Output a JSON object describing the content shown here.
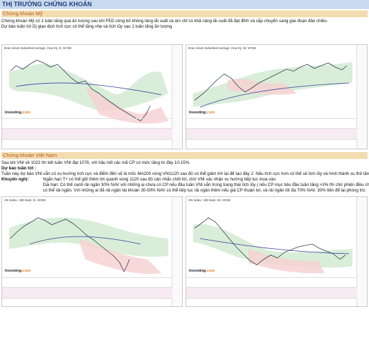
{
  "page_title": "THỊ TRƯỜNG CHỨNG KHOÁN",
  "us": {
    "heading": "Chứng khoán Mỹ",
    "line1": "Chứng khoán Mỹ có 1 tuần tăng quá ấn tượng sau khi FED công bố không tăng lãi suất và ám chỉ có khả năng lãi suất đã đạt đỉnh và sắp chuyển sang giai đoạn đảo chiều.",
    "line2": "Dự báo tuần tới Dj giao dịch tích cực có thể tăng nhẹ và tích lũy sau 1 tuần tăng ấn tượng",
    "chart_left": {
      "title": "Dow Jones Industrial Average, Hoa Kỳ, D, NYSE",
      "logo_a": "Investing",
      "logo_b": ".com"
    },
    "chart_right": {
      "title": "Dow Jones Industrial Average, Hoa Kỳ, W, NYSE",
      "logo_a": "Investing",
      "logo_b": ".com"
    }
  },
  "vn": {
    "heading": "Chứng khoán Việt Nam",
    "line1": "Sau khi VNI về 1022 thì kết tuần VNI đạt 1076, với hầu hết các mã CP có mức tăng từ đáy 10-15%.",
    "forecast_label": "Dự báo tuần tới :",
    "line2": "Tuần này dự báo VNI vẫn có xu hướng tích cực và điểm đến sẽ là mốc MA200 vùng VNI1120 sau đó có thể giảm trở lại để tạo đáy 2. Nếu tích cực hơn có thể sẽ tích lũy và hình thành xu thế tăng mới",
    "advice_label": "Khuyến nghị:",
    "short_term": "Ngắn hạn T+ có thể giữ thêm tới quanh vùng 1120 sau đó cân nhắc chốt lời, chờ VNI xác nhận xu hướng tiếp tục mua vào",
    "long_term_1": "Dài hạn: Có thể canh rải ngân 30% NAV với những ai chưa có CP nếu đầu tuần VNI vẫn trong trang thái tích lũy ( nếu CP mục tiêu đầu tuần tăng >3% thì chờ phiên điều chỉnh để",
    "long_term_2": "có thể rải ngân. Với những ai đã rải ngân tài khoản 30-50% NAV có thể tiếp tục rải ngân thêm nếu giá CP thuận lợi, và rải ngân tối đa 70% NAV. 30% tiền để lại phòng trừ.",
    "chart_left": {
      "title": "VN Index, Việt Nam, D, HOSE",
      "logo_a": "Investing",
      "logo_b": ".com"
    },
    "chart_right": {
      "title": "VN Index, Việt Nam, W, HOSE",
      "logo_a": "Investing",
      "logo_b": ".com"
    }
  },
  "colors": {
    "title_bg": "#c9d9ef",
    "section_bg": "#f3ddb0",
    "section_text": "#b3541e",
    "price_line": "#2c3e50",
    "cloud_green": "#cfe8d0",
    "cloud_red": "#f6cfcf"
  }
}
